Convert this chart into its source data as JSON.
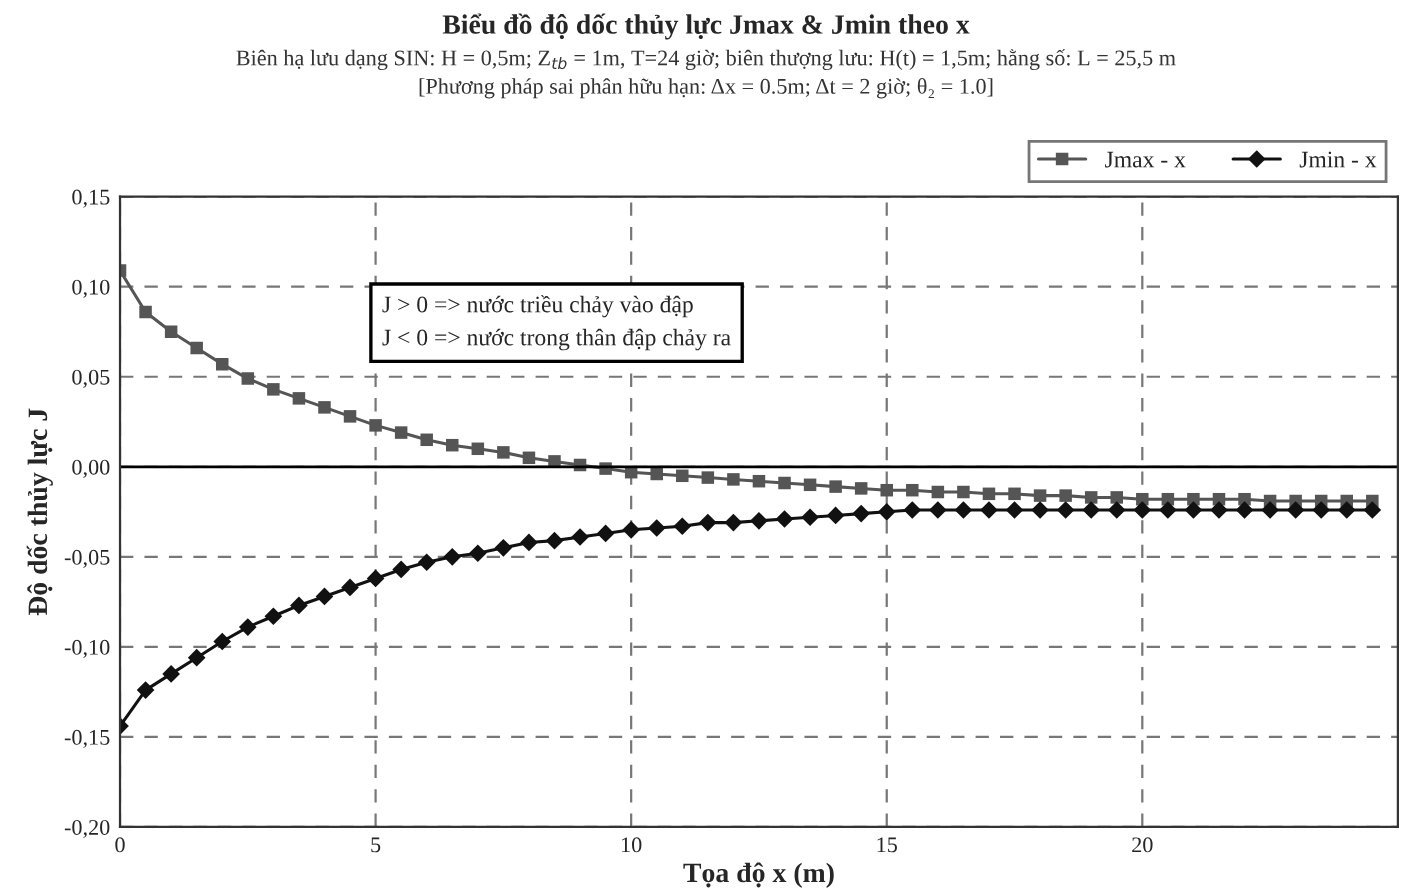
{
  "chart_data": {
    "type": "line",
    "title": "Biểu đồ độ dốc thủy lực Jmax & Jmin theo x",
    "subtitle": "Biên hạ lưu dạng SIN: H = 0,5m; Z$_{tb}$ = 1m, T=24 giờ; biên thượng lưu: H(t) = 1,5m; hằng số: L = 25,5 m\n[Phương pháp sai phân hữu hạn: Δx = 0.5m; Δt = 2 giờ; θ₂ = 1.0]",
    "xlabel": "Tọa độ x (m)",
    "ylabel": "Độ dốc thủy lực J",
    "annotations": [
      "J > 0 => nước triều chảy vào đập\nJ < 0 => nước trong thân đập chảy ra"
    ],
    "x": [
      0,
      0.5,
      1,
      1.5,
      2,
      2.5,
      3,
      3.5,
      4,
      4.5,
      5,
      5.5,
      6,
      6.5,
      7,
      7.5,
      8,
      8.5,
      9,
      9.5,
      10,
      10.5,
      11,
      11.5,
      12,
      12.5,
      13,
      13.5,
      14,
      14.5,
      15,
      15.5,
      16,
      16.5,
      17,
      17.5,
      18,
      18.5,
      19,
      19.5,
      20,
      20.5,
      21,
      21.5,
      22,
      22.5,
      23,
      23.5,
      24,
      24.5
    ],
    "series": [
      {
        "name": "Jmax - x",
        "color": "#555555",
        "marker": "square",
        "values": [
          0.109,
          0.086,
          0.075,
          0.066,
          0.057,
          0.049,
          0.043,
          0.038,
          0.033,
          0.028,
          0.023,
          0.019,
          0.015,
          0.012,
          0.01,
          0.008,
          0.005,
          0.003,
          0.001,
          -0.001,
          -0.003,
          -0.004,
          -0.005,
          -0.006,
          -0.007,
          -0.008,
          -0.009,
          -0.01,
          -0.011,
          -0.012,
          -0.013,
          -0.013,
          -0.014,
          -0.014,
          -0.015,
          -0.015,
          -0.016,
          -0.016,
          -0.017,
          -0.017,
          -0.018,
          -0.018,
          -0.018,
          -0.018,
          -0.018,
          -0.019,
          -0.019,
          -0.019,
          -0.019,
          -0.019
        ]
      },
      {
        "name": "Jmin - x",
        "color": "#111111",
        "marker": "diamond",
        "values": [
          -0.144,
          -0.124,
          -0.115,
          -0.106,
          -0.097,
          -0.089,
          -0.083,
          -0.077,
          -0.072,
          -0.067,
          -0.062,
          -0.057,
          -0.053,
          -0.05,
          -0.048,
          -0.045,
          -0.042,
          -0.041,
          -0.039,
          -0.037,
          -0.035,
          -0.034,
          -0.033,
          -0.031,
          -0.031,
          -0.03,
          -0.029,
          -0.028,
          -0.027,
          -0.026,
          -0.025,
          -0.024,
          -0.024,
          -0.024,
          -0.024,
          -0.024,
          -0.024,
          -0.024,
          -0.024,
          -0.024,
          -0.024,
          -0.024,
          -0.024,
          -0.024,
          -0.024,
          -0.024,
          -0.024,
          -0.024,
          -0.024,
          -0.024
        ]
      }
    ],
    "xlim": [
      0,
      25
    ],
    "xticks": [
      0,
      5,
      10,
      15,
      20
    ],
    "ylim": [
      -0.2,
      0.15
    ],
    "yticks": [
      {
        "value": -0.2,
        "label": "-0,20"
      },
      {
        "value": -0.15,
        "label": "-0,15"
      },
      {
        "value": -0.1,
        "label": "-0,10"
      },
      {
        "value": -0.05,
        "label": "-0,05"
      },
      {
        "value": 0,
        "label": "0,00"
      },
      {
        "value": 0.05,
        "label": "0,05"
      },
      {
        "value": 0.1,
        "label": "0,10"
      },
      {
        "value": 0.15,
        "label": "0,15"
      }
    ],
    "ref_lines": [
      {
        "axis": "y",
        "value": 0,
        "color": "#000000",
        "line_style": "solid"
      }
    ],
    "grid": true,
    "legend": "top right",
    "line_style": "solid"
  }
}
